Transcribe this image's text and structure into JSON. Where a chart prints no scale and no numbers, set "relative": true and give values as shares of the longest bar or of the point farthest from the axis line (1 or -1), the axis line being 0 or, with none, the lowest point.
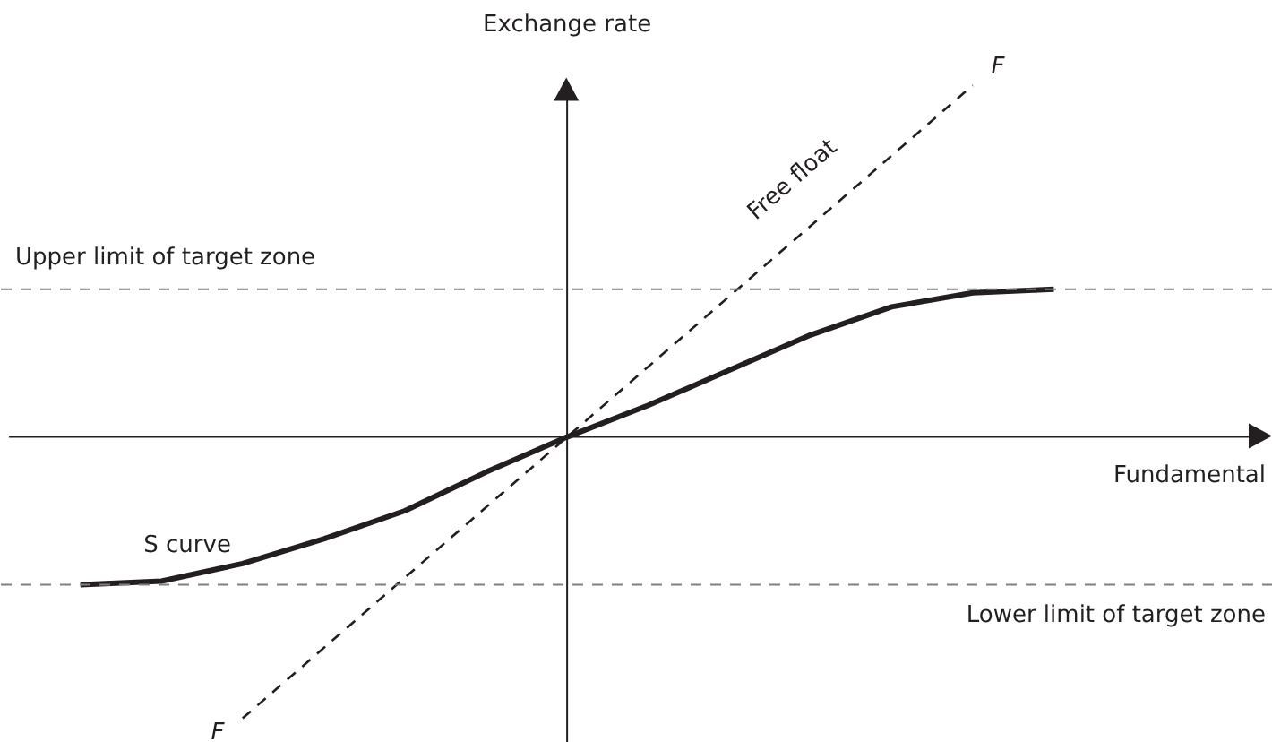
{
  "chart_data": {
    "type": "line",
    "relative": true,
    "xlabel": "Fundamental",
    "ylabel": "Exchange rate",
    "line_style": "solid",
    "marker": "none",
    "grid": false,
    "categories": [
      null,
      null,
      null,
      null,
      null,
      null,
      null,
      null,
      null,
      null,
      null,
      null,
      null
    ],
    "series": [
      {
        "name": "S curve",
        "color": "#231f20",
        "values": [
          -0.42,
          -0.41,
          -0.36,
          -0.29,
          -0.21,
          -0.1,
          0,
          0.09,
          0.19,
          0.29,
          0.37,
          0.41,
          0.42
        ]
      },
      {
        "name": "Free float",
        "color": "#231f20",
        "line_style": "dashed",
        "values": [
          null,
          null,
          -0.8,
          -0.6,
          -0.4,
          -0.2,
          0,
          0.2,
          0.4,
          0.6,
          0.8,
          1.0,
          null
        ]
      }
    ],
    "ref_lines": [
      {
        "axis": "y",
        "value": 0.42,
        "label": "Upper limit of target zone",
        "color": "#808080",
        "line_style": "dashed"
      },
      {
        "axis": "y",
        "value": -0.42,
        "label": "Lower limit of target zone",
        "color": "#808080",
        "line_style": "dashed"
      }
    ],
    "annotations": [
      "F",
      "F"
    ]
  }
}
